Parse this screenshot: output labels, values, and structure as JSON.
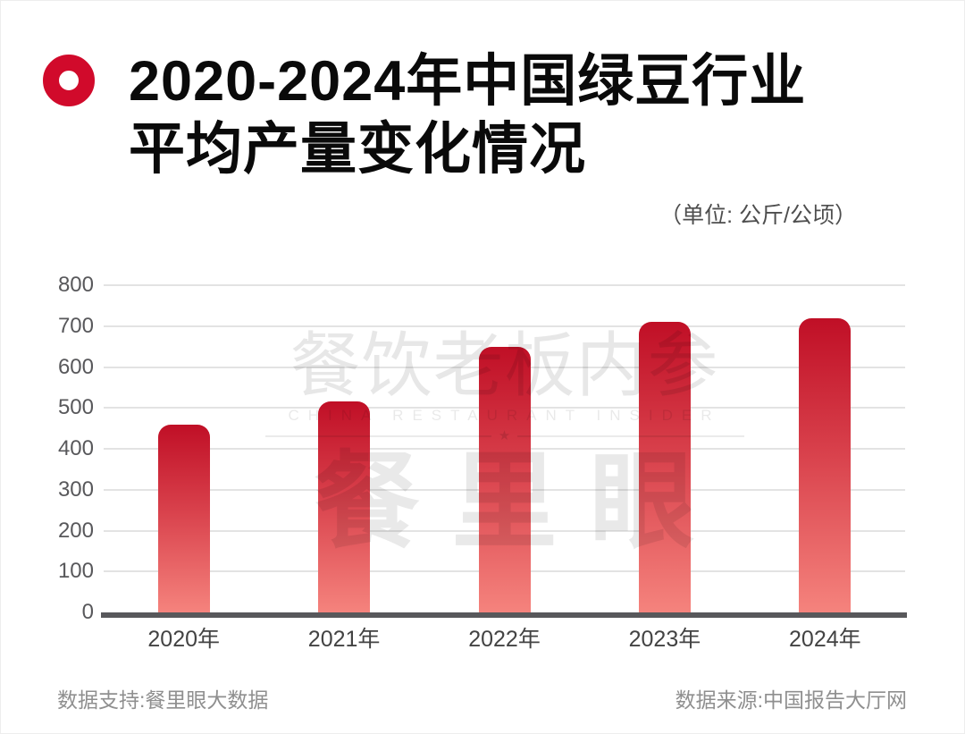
{
  "title": {
    "line1": "2020-2024年中国绿豆行业",
    "line2": "平均产量变化情况"
  },
  "unit_label": "（单位: 公斤/公顷）",
  "chart_data": {
    "type": "bar",
    "title": "2020-2024年中国绿豆行业平均产量变化情况",
    "unit": "公斤/公顷",
    "categories": [
      "2020年",
      "2021年",
      "2022年",
      "2023年",
      "2024年"
    ],
    "values": [
      460,
      515,
      650,
      710,
      720
    ],
    "xlabel": "",
    "ylabel": "",
    "ylim": [
      0,
      800
    ],
    "yticks": [
      0,
      100,
      200,
      300,
      400,
      500,
      600,
      700,
      800
    ],
    "grid": true,
    "legend": false
  },
  "watermark": {
    "line1": "餐饮老板内参",
    "line2": "CHINA RESTAURANT INSIDER",
    "star": "★",
    "line3": "餐里眼"
  },
  "footer": {
    "left": "数据支持:餐里眼大数据",
    "right": "数据来源:中国报告大厅网"
  },
  "colors": {
    "accent_red": "#d10a2b",
    "bar_gradient_top": "#c00f26",
    "bar_gradient_bottom": "#f5837d",
    "baseline": "#58585b",
    "gridline": "#e3e3e3",
    "title_text": "#0a0a0a",
    "axis_text": "#58585b",
    "category_text": "#434343",
    "muted_text": "#8f8f8f"
  }
}
